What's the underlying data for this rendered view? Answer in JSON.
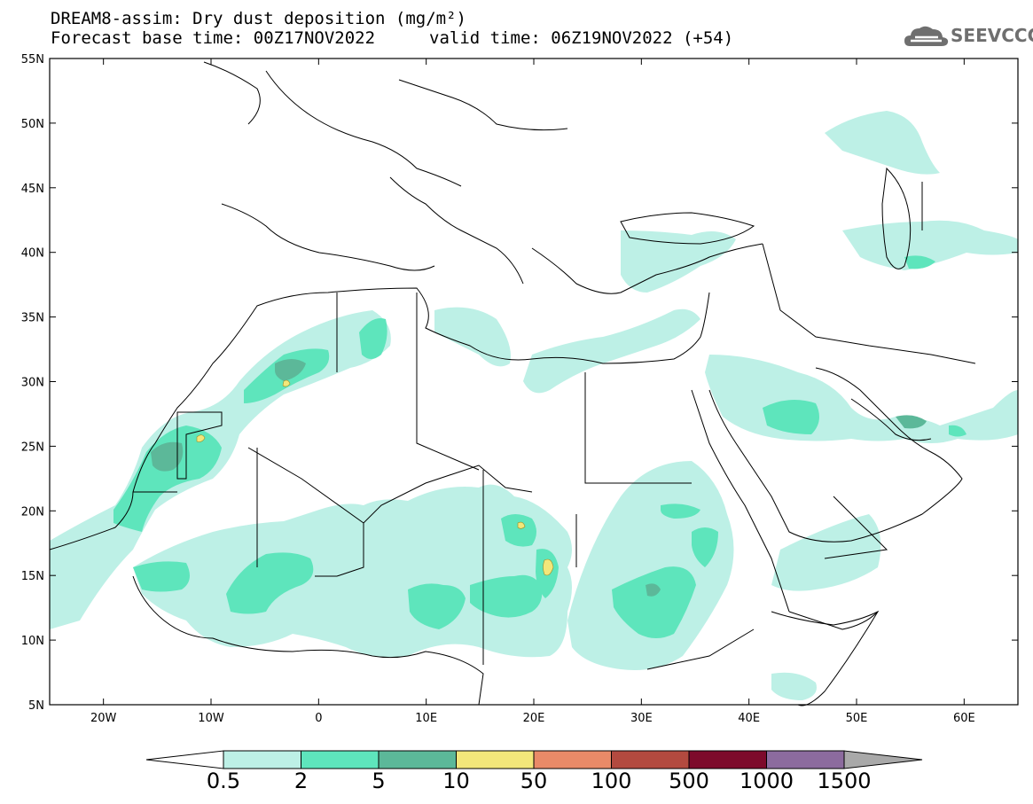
{
  "title": {
    "line1": "DREAM8-assim: Dry dust deposition (mg/m²)",
    "line2": "Forecast base time: 00Z17NOV2022",
    "valid": "valid time: 06Z19NOV2022 (+54)"
  },
  "logo": {
    "text": "SEEVCCC",
    "icon": "cloud-icon",
    "color": "#6f6f6f"
  },
  "map": {
    "lon_range": [
      -25,
      65
    ],
    "lat_range": [
      5,
      55
    ],
    "x_ticks": [
      {
        "lon": -20,
        "label": "20W"
      },
      {
        "lon": -10,
        "label": "10W"
      },
      {
        "lon": 0,
        "label": "0"
      },
      {
        "lon": 10,
        "label": "10E"
      },
      {
        "lon": 20,
        "label": "20E"
      },
      {
        "lon": 30,
        "label": "30E"
      },
      {
        "lon": 40,
        "label": "40E"
      },
      {
        "lon": 50,
        "label": "50E"
      },
      {
        "lon": 60,
        "label": "60E"
      }
    ],
    "y_ticks": [
      {
        "lat": 55,
        "label": "55N"
      },
      {
        "lat": 50,
        "label": "50N"
      },
      {
        "lat": 45,
        "label": "45N"
      },
      {
        "lat": 40,
        "label": "40N"
      },
      {
        "lat": 35,
        "label": "35N"
      },
      {
        "lat": 30,
        "label": "30N"
      },
      {
        "lat": 25,
        "label": "25N"
      },
      {
        "lat": 20,
        "label": "20N"
      },
      {
        "lat": 15,
        "label": "15N"
      },
      {
        "lat": 10,
        "label": "10N"
      },
      {
        "lat": 5,
        "label": "5N"
      }
    ]
  },
  "colorbar": {
    "labels": [
      "0.5",
      "2",
      "5",
      "10",
      "50",
      "100",
      "500",
      "1000",
      "1500"
    ],
    "colors": [
      "#bdf0e6",
      "#5ee5bc",
      "#5cb899",
      "#f3e77a",
      "#e98a68",
      "#b34a3f",
      "#7d0a2b",
      "#8c6b9e"
    ],
    "under_color": "#ffffff",
    "over_color": "#a9a9a9"
  }
}
